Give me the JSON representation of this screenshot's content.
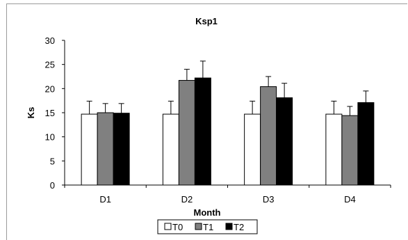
{
  "chart_data": {
    "type": "bar",
    "title": "Ksp1",
    "xlabel": "Month",
    "ylabel": "Ks",
    "categories": [
      "D1",
      "D2",
      "D3",
      "D4"
    ],
    "ylim": [
      0,
      30
    ],
    "yticks": [
      0,
      5,
      10,
      15,
      20,
      25,
      30
    ],
    "grid": false,
    "legend_position": "bottom",
    "series": [
      {
        "name": "T0",
        "color": "#ffffff",
        "values": [
          14.7,
          14.7,
          14.7,
          14.7
        ],
        "errors": [
          2.7,
          2.7,
          2.7,
          2.7
        ]
      },
      {
        "name": "T1",
        "color": "#808080",
        "values": [
          15.0,
          21.7,
          20.4,
          14.4
        ],
        "errors": [
          1.9,
          2.3,
          2.1,
          1.9
        ]
      },
      {
        "name": "T2",
        "color": "#000000",
        "values": [
          14.9,
          22.2,
          18.1,
          17.1
        ],
        "errors": [
          2.0,
          3.5,
          3.0,
          2.4
        ]
      }
    ]
  }
}
